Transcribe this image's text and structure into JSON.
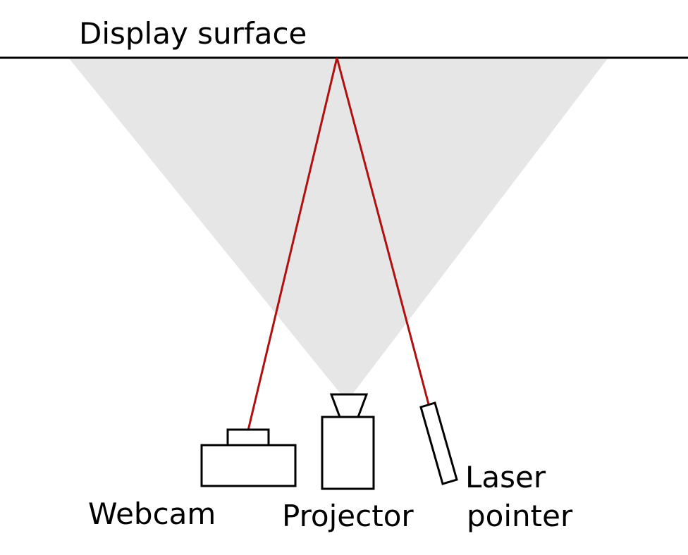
{
  "labels": {
    "display_surface": "Display surface",
    "webcam": "Webcam",
    "projector": "Projector",
    "laser_pointer_line1": "Laser",
    "laser_pointer_line2": "pointer"
  },
  "colors": {
    "projection_cone": "#e6e6e6",
    "laser_beam": "#b01010",
    "outline": "#000000",
    "background": "#ffffff"
  }
}
